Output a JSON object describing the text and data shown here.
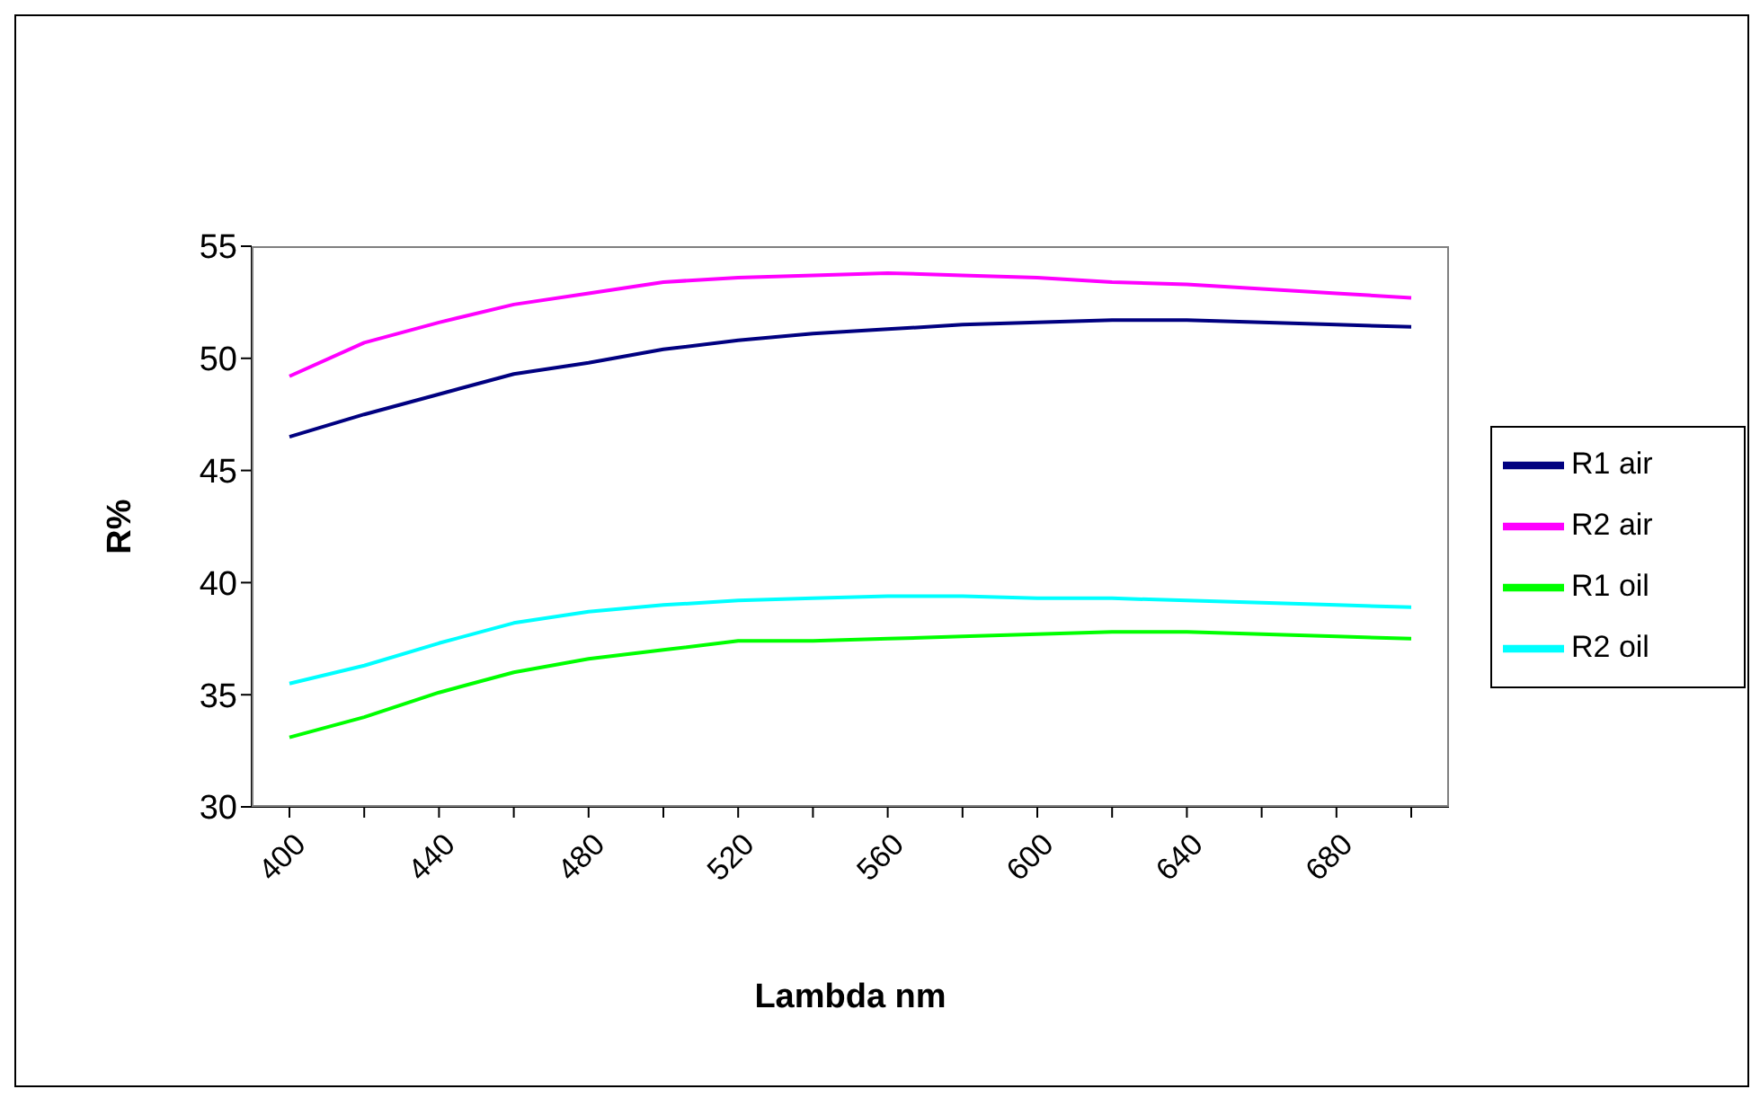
{
  "chart_data": {
    "type": "line",
    "xlabel": "Lambda nm",
    "ylabel": "R%",
    "categories": [
      "400",
      null,
      "440",
      null,
      "480",
      null,
      "520",
      null,
      "560",
      null,
      "600",
      null,
      "640",
      null,
      "680",
      null
    ],
    "series": [
      {
        "name": "R1 air",
        "color": "#000080",
        "values": [
          46.5,
          47.5,
          48.4,
          49.3,
          49.8,
          50.4,
          50.8,
          51.1,
          51.3,
          51.5,
          51.6,
          51.7,
          51.7,
          51.6,
          51.5,
          51.4
        ]
      },
      {
        "name": "R2 air",
        "color": "#ff00ff",
        "values": [
          49.2,
          50.7,
          51.6,
          52.4,
          52.9,
          53.4,
          53.6,
          53.7,
          53.8,
          53.7,
          53.6,
          53.4,
          53.3,
          53.1,
          52.9,
          52.7
        ]
      },
      {
        "name": "R1 oil",
        "color": "#00ff00",
        "values": [
          33.1,
          34.0,
          35.1,
          36.0,
          36.6,
          37.0,
          37.4,
          37.4,
          37.5,
          37.6,
          37.7,
          37.8,
          37.8,
          37.7,
          37.6,
          37.5
        ]
      },
      {
        "name": "R2 oil",
        "color": "#00ffff",
        "values": [
          35.5,
          36.3,
          37.3,
          38.2,
          38.7,
          39.0,
          39.2,
          39.3,
          39.4,
          39.4,
          39.3,
          39.3,
          39.2,
          39.1,
          39.0,
          38.9
        ]
      }
    ],
    "ylim": [
      30,
      55
    ],
    "yticks": [
      30,
      35,
      40,
      45,
      50,
      55
    ],
    "grid": false,
    "legend": "right",
    "marker": "none",
    "line_style": "solid"
  }
}
